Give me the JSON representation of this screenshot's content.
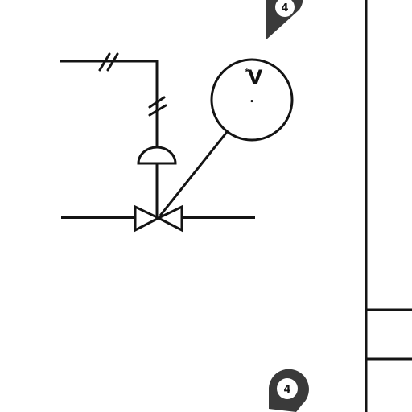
{
  "diagram": {
    "type": "P&ID excerpt",
    "instrument": {
      "tag_letter": "V",
      "tag_prefix": "*",
      "tag_suffix": "•"
    },
    "markers": {
      "top_label": "4",
      "bottom_label": "4"
    },
    "colors": {
      "stroke": "#141414",
      "background": "#ffffff",
      "marker_fill": "#3a3a3a"
    },
    "icons": {
      "valve": "gate-valve-icon",
      "actuator": "diaphragm-actuator-icon",
      "instrument": "instrument-bubble-icon",
      "signal": "electric-signal-hash-icon",
      "marker": "location-pin-icon"
    }
  }
}
